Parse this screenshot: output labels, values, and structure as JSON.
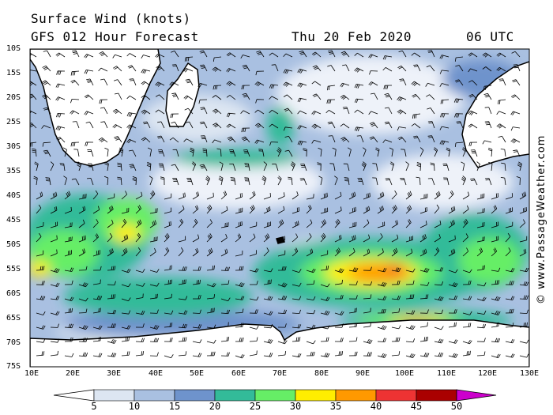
{
  "header": {
    "title": "Surface Wind (knots)",
    "forecast": "GFS 012 Hour Forecast",
    "date": "Thu 20 Feb 2020",
    "time": "06 UTC"
  },
  "credit": "© www.PassageWeather.com",
  "lat_labels": [
    "10S",
    "15S",
    "20S",
    "25S",
    "30S",
    "35S",
    "40S",
    "45S",
    "50S",
    "55S",
    "60S",
    "65S",
    "70S",
    "75S"
  ],
  "lon_labels": [
    "10E",
    "20E",
    "30E",
    "40E",
    "50E",
    "60E",
    "70E",
    "80E",
    "90E",
    "100E",
    "110E",
    "120E",
    "130E"
  ],
  "colorbar": {
    "labels": [
      "5",
      "10",
      "15",
      "20",
      "25",
      "30",
      "35",
      "40",
      "45",
      "50"
    ],
    "colors": [
      "#ffffff",
      "#dde6f2",
      "#a9c0e1",
      "#6e93cc",
      "#33bb99",
      "#66ee66",
      "#ffee00",
      "#ff9900",
      "#ee3333",
      "#aa0000",
      "#cc00cc"
    ]
  }
}
